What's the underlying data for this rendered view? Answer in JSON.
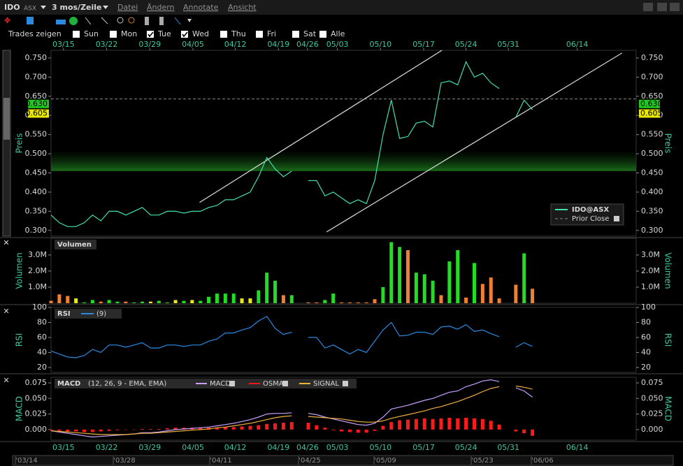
{
  "menu": {
    "symbol": "IDO",
    "exchange": "ASX",
    "period": "3 mos/Zeile",
    "items": [
      "Datei",
      "Ändern",
      "Annotate",
      "Ansicht"
    ]
  },
  "trades": {
    "label": "Trades zeigen",
    "days": [
      {
        "label": "Sun",
        "checked": false
      },
      {
        "label": "Mon",
        "checked": false
      },
      {
        "label": "Tue",
        "checked": true
      },
      {
        "label": "Wed",
        "checked": true
      },
      {
        "label": "Thu",
        "checked": false
      },
      {
        "label": "Fri",
        "checked": false
      },
      {
        "label": "Sat",
        "checked": false
      },
      {
        "label": "Alle",
        "checked": false
      }
    ]
  },
  "chart_data": [
    {
      "type": "line",
      "y_axis_label": "Preis",
      "xlim": [
        0,
        70.5
      ],
      "xticks": [
        {
          "value": 1.5,
          "label": "03/15"
        },
        {
          "value": 6.7,
          "label": "03/22"
        },
        {
          "value": 11.9,
          "label": "03/29"
        },
        {
          "value": 17.1,
          "label": "04/05"
        },
        {
          "value": 22.2,
          "label": "04/12"
        },
        {
          "value": 27.4,
          "label": "04/19"
        },
        {
          "value": 30.9,
          "label": "04/26"
        },
        {
          "value": 34.5,
          "label": "05/03"
        },
        {
          "value": 39.7,
          "label": "05/10"
        },
        {
          "value": 44.9,
          "label": "05/17"
        },
        {
          "value": 50,
          "label": "05/24"
        },
        {
          "value": 55.1,
          "label": "05/31"
        },
        {
          "value": 63.4,
          "label": "06/14"
        }
      ],
      "ylim": [
        0.285,
        0.77
      ],
      "yticks": [
        {
          "value": 0.3,
          "label": "0.300"
        },
        {
          "value": 0.35,
          "label": "0.350"
        },
        {
          "value": 0.4,
          "label": "0.400"
        },
        {
          "value": 0.45,
          "label": "0.450"
        },
        {
          "value": 0.5,
          "label": "0.500"
        },
        {
          "value": 0.55,
          "label": "0.550"
        },
        {
          "value": 0.6,
          "label": "0.600"
        },
        {
          "value": 0.65,
          "label": "0.650"
        },
        {
          "value": 0.7,
          "label": "0.700"
        },
        {
          "value": 0.75,
          "label": "0.750"
        }
      ],
      "series": [
        {
          "name": "IDO@ASX",
          "color": "#3fe0b0",
          "values": [
            0.34,
            0.32,
            0.31,
            0.31,
            0.32,
            0.34,
            0.325,
            0.35,
            0.35,
            0.34,
            0.35,
            0.36,
            0.34,
            0.34,
            0.35,
            0.35,
            0.345,
            0.35,
            0.35,
            0.36,
            0.365,
            0.38,
            0.38,
            0.39,
            0.4,
            0.44,
            0.49,
            0.46,
            0.44,
            0.455,
            null,
            0.43,
            0.43,
            0.39,
            0.4,
            0.385,
            0.37,
            0.38,
            0.37,
            0.43,
            0.55,
            0.64,
            0.54,
            0.545,
            0.58,
            0.585,
            0.57,
            0.685,
            0.69,
            0.68,
            0.74,
            0.7,
            0.71,
            0.685,
            0.67,
            null,
            0.595,
            0.64,
            0.615
          ]
        }
      ],
      "prior_close": {
        "name": "Prior Close",
        "value": 0.643
      },
      "price_labels": [
        {
          "value": 0.63,
          "label": "0.630",
          "color": "#22c822"
        },
        {
          "value": 0.605,
          "label": "0.605",
          "color": "#e8e800"
        }
      ],
      "highlight_band": [
        0.455,
        0.51
      ],
      "trend_lines": [
        {
          "x": [
            17.9,
            47.1
          ],
          "y": [
            0.373,
            0.77
          ]
        },
        {
          "x": [
            33.2,
            68.8
          ],
          "y": [
            0.296,
            0.763
          ]
        }
      ]
    },
    {
      "type": "bar",
      "legend_label": "Volumen",
      "y_axis_label": "Volumen",
      "xlim": [
        0,
        70.5
      ],
      "ylim": [
        0,
        4040000
      ],
      "yticks": [
        {
          "value": 1000000,
          "label": "1.0M"
        },
        {
          "value": 2000000,
          "label": "2.0M"
        },
        {
          "value": 3000000,
          "label": "3.0M"
        }
      ],
      "values": [
        150000,
        550000,
        450000,
        300000,
        50000,
        200000,
        100000,
        200000,
        100000,
        100000,
        50000,
        100000,
        100000,
        150000,
        50000,
        200000,
        150000,
        200000,
        150000,
        400000,
        600000,
        600000,
        600000,
        300000,
        300000,
        800000,
        1900000,
        1400000,
        500000,
        500000,
        null,
        50000,
        50000,
        200000,
        600000,
        50000,
        50000,
        50000,
        50000,
        250000,
        1000000,
        3800000,
        3500000,
        3300000,
        1900000,
        1800000,
        1400000,
        500000,
        2600000,
        3300000,
        350000,
        2500000,
        1200000,
        1600000,
        300000,
        null,
        1150000,
        3100000,
        900000
      ],
      "colors": [
        "#f08030",
        "#f08030",
        "#f08030",
        "#e8e820",
        "#22dd22",
        "#22dd22",
        "#f08030",
        "#22dd22",
        "#22dd22",
        "#f08030",
        "#22dd22",
        "#22dd22",
        "#e8e820",
        "#22dd22",
        "#22dd22",
        "#e8e820",
        "#22dd22",
        "#e8e820",
        "#22dd22",
        "#22dd22",
        "#22dd22",
        "#22dd22",
        "#22dd22",
        "#e8e820",
        "#e8e820",
        "#22dd22",
        "#22dd22",
        "#22dd22",
        "#f08030",
        "#22dd22",
        null,
        "#f08030",
        "#f08030",
        "#22dd22",
        "#22dd22",
        "#f08030",
        "#f08030",
        "#f08030",
        "#f08030",
        "#f08030",
        "#22dd22",
        "#22dd22",
        "#22dd22",
        "#f08030",
        "#22dd22",
        "#22dd22",
        "#22dd22",
        "#f08030",
        "#22dd22",
        "#22dd22",
        "#f08030",
        "#22dd22",
        "#f08030",
        "#f08030",
        "#f08030",
        null,
        "#f08030",
        "#22dd22",
        "#f08030"
      ]
    },
    {
      "type": "line",
      "title": "RSI",
      "parameter": "(9)",
      "y_axis_label": "RSI",
      "xlim": [
        0,
        70.5
      ],
      "ylim": [
        13.5,
        100
      ],
      "yticks": [
        20,
        40,
        60,
        80,
        100
      ],
      "series": [
        {
          "name": "RSI",
          "color": "#2a8ae0",
          "values": [
            42,
            38,
            34,
            33,
            36,
            44,
            40,
            50,
            50,
            47,
            50,
            53,
            46,
            46,
            50,
            50,
            48,
            50,
            50,
            55,
            58,
            66,
            66,
            70,
            73,
            82,
            88,
            72,
            64,
            67,
            null,
            60,
            60,
            46,
            50,
            44,
            38,
            44,
            40,
            55,
            70,
            80,
            62,
            63,
            67,
            67,
            64,
            74,
            75,
            71,
            77,
            68,
            70,
            65,
            61,
            null,
            47,
            53,
            48
          ]
        }
      ]
    },
    {
      "type": "line",
      "title": "MACD",
      "parameter": "(12, 26, 9 - EMA, EMA)",
      "y_axis_label": "MACD",
      "xlim": [
        0,
        70.5
      ],
      "ylim": [
        -0.017,
        0.084
      ],
      "yticks": [
        {
          "value": 0,
          "label": "0.000"
        },
        {
          "value": 0.025,
          "label": "0.025"
        },
        {
          "value": 0.05,
          "label": "0.050"
        },
        {
          "value": 0.075,
          "label": "0.075"
        }
      ],
      "series": [
        {
          "name": "MACD",
          "color": "#c8a0ff",
          "kind": "line",
          "values": [
            -0.002,
            -0.004,
            -0.006,
            -0.008,
            -0.01,
            -0.012,
            -0.011,
            -0.01,
            -0.009,
            -0.008,
            -0.007,
            -0.005,
            -0.005,
            -0.004,
            -0.002,
            0.0,
            0.001,
            0.002,
            0.003,
            0.004,
            0.006,
            0.008,
            0.01,
            0.013,
            0.016,
            0.02,
            0.025,
            0.026,
            0.026,
            0.027,
            null,
            0.026,
            0.024,
            0.02,
            0.017,
            0.014,
            0.011,
            0.008,
            0.007,
            0.01,
            0.02,
            0.033,
            0.036,
            0.039,
            0.043,
            0.047,
            0.05,
            0.055,
            0.06,
            0.062,
            0.069,
            0.073,
            0.078,
            0.08,
            0.077,
            null,
            0.067,
            0.062,
            0.052
          ]
        },
        {
          "name": "OSMA",
          "color": "#ff1a1a",
          "kind": "bar",
          "values": [
            -0.001,
            -0.002,
            -0.003,
            -0.003,
            -0.004,
            -0.004,
            -0.003,
            -0.002,
            -0.001,
            0.0,
            0.0,
            0.001,
            0.001,
            0.001,
            0.002,
            0.003,
            0.003,
            0.003,
            0.003,
            0.003,
            0.003,
            0.004,
            0.004,
            0.005,
            0.006,
            0.007,
            0.009,
            0.01,
            0.011,
            0.012,
            null,
            0.011,
            0.007,
            0.003,
            -0.001,
            -0.003,
            -0.004,
            -0.005,
            -0.005,
            -0.002,
            0.006,
            0.012,
            0.015,
            0.016,
            0.017,
            0.018,
            0.017,
            0.018,
            0.019,
            0.018,
            0.019,
            0.018,
            0.017,
            0.014,
            0.008,
            null,
            -0.003,
            -0.006,
            -0.01
          ]
        },
        {
          "name": "SIGNAL",
          "color": "#f0b040",
          "kind": "line",
          "values": [
            -0.002,
            -0.003,
            -0.004,
            -0.005,
            -0.006,
            -0.007,
            -0.008,
            -0.008,
            -0.008,
            -0.008,
            -0.007,
            -0.006,
            -0.006,
            -0.005,
            -0.004,
            -0.003,
            -0.002,
            -0.001,
            0.0,
            0.001,
            0.003,
            0.004,
            0.006,
            0.008,
            0.01,
            0.013,
            0.016,
            0.019,
            0.021,
            0.022,
            null,
            0.021,
            0.02,
            0.019,
            0.018,
            0.017,
            0.015,
            0.013,
            0.012,
            0.012,
            0.014,
            0.018,
            0.021,
            0.024,
            0.027,
            0.03,
            0.034,
            0.037,
            0.041,
            0.045,
            0.05,
            0.055,
            0.061,
            0.066,
            0.069,
            null,
            0.07,
            0.068,
            0.065
          ]
        }
      ]
    }
  ],
  "navigator": {
    "labels": [
      "'03/14",
      "'03/28",
      "'04/11",
      "'04/25",
      "'05/09",
      "'05/23",
      "'06/06"
    ]
  }
}
